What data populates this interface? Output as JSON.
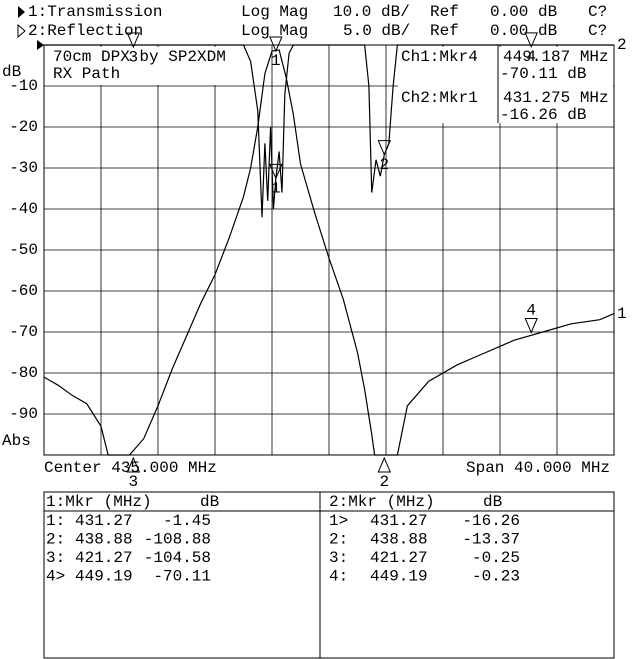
{
  "chart_data": {
    "type": "line",
    "header": [
      {
        "trace": "1:Transmission",
        "format": "Log Mag",
        "scale": "10.0 dB/",
        "ref_label": "Ref",
        "ref": "0.00 dB",
        "cal": "C?"
      },
      {
        "trace": "2:Reflection",
        "format": "Log Mag",
        "scale": "5.0 dB/",
        "ref_label": "Ref",
        "ref": "0.00 dB",
        "cal": "C?"
      }
    ],
    "title": "70cm DPX by SP2XDM",
    "subtitle": "RX Path",
    "annotations": [
      {
        "channel": "Ch1:Mkr4",
        "freq": "449.187 MHz",
        "level": "-70.11 dB"
      },
      {
        "channel": "Ch2:Mkr1",
        "freq": "431.275 MHz",
        "level": "-16.26 dB"
      }
    ],
    "y_label": "dB",
    "y_label_bottom": "Abs",
    "center": "Center 435.000 MHz",
    "span": "Span 40.000 MHz",
    "xlim": [
      415,
      455
    ],
    "xticks": [
      415,
      419,
      423,
      427,
      431,
      435,
      439,
      443,
      447,
      451,
      455
    ],
    "ylim": [
      -100,
      0
    ],
    "yticks": [
      -10,
      -20,
      -30,
      -40,
      -50,
      -60,
      -70,
      -80,
      -90
    ],
    "y2lim": [
      -50,
      0
    ],
    "grid": true,
    "series": [
      {
        "id": "1",
        "name": "Transmission",
        "color": "#000000",
        "x": [
          415,
          416,
          417,
          418,
          419,
          419.5,
          421,
          422,
          423,
          424,
          425,
          426,
          427,
          428,
          429,
          429.5,
          430,
          430.5,
          431,
          431.5,
          432,
          432.5,
          433,
          434,
          435,
          436,
          437,
          437.5,
          438,
          438.2,
          439.8,
          440.5,
          442,
          444,
          446,
          448,
          450,
          452,
          454,
          455
        ],
        "values": [
          -81,
          -83,
          -85.5,
          -87.5,
          -93,
          -100,
          -100,
          -96,
          -88,
          -79,
          -71,
          -63,
          -56,
          -47,
          -37,
          -30,
          -20,
          -7,
          -1.5,
          -1.2,
          -8,
          -17,
          -29,
          -41,
          -52,
          -62,
          -75,
          -84,
          -95,
          -100,
          -100,
          -88,
          -82,
          -78,
          -75,
          -72,
          -70,
          -68,
          -67,
          -65.5
        ],
        "markers": {
          "title": "1:Mkr (MHz)",
          "unit": "dB",
          "row_labels": [
            "1:",
            "2:",
            "3:",
            "4>"
          ],
          "names": [
            "1",
            "2",
            "3",
            "4"
          ],
          "x": [
            431.27,
            438.88,
            421.27,
            449.19
          ],
          "values": [
            -1.45,
            -108.88,
            -104.58,
            -70.11
          ]
        }
      },
      {
        "id": "2",
        "name": "Reflection",
        "color": "#000000",
        "axis": "y2",
        "x": [
          415,
          429,
          429.5,
          430,
          430.3,
          430.5,
          430.7,
          430.9,
          431.1,
          431.27,
          431.5,
          431.7,
          431.9,
          432.2,
          432.5,
          437.5,
          437.8,
          438,
          438.3,
          438.6,
          438.88,
          439.2,
          439.5,
          439.8,
          455
        ],
        "values": [
          0,
          0,
          -2,
          -8,
          -21,
          -12,
          -19,
          -10,
          -20,
          -16.26,
          -13,
          -18,
          -6,
          -1,
          0,
          0,
          -5,
          -18,
          -14,
          -16,
          -13.37,
          -12,
          -5,
          0,
          0
        ],
        "markers": {
          "title": "2:Mkr (MHz)",
          "unit": "dB",
          "row_labels": [
            "1>",
            "2:",
            "3:",
            "4:"
          ],
          "names": [
            "1",
            "2",
            "3",
            "4"
          ],
          "x": [
            431.27,
            438.88,
            421.27,
            449.19
          ],
          "values": [
            -16.26,
            -13.37,
            -0.25,
            -0.23
          ]
        }
      }
    ]
  }
}
